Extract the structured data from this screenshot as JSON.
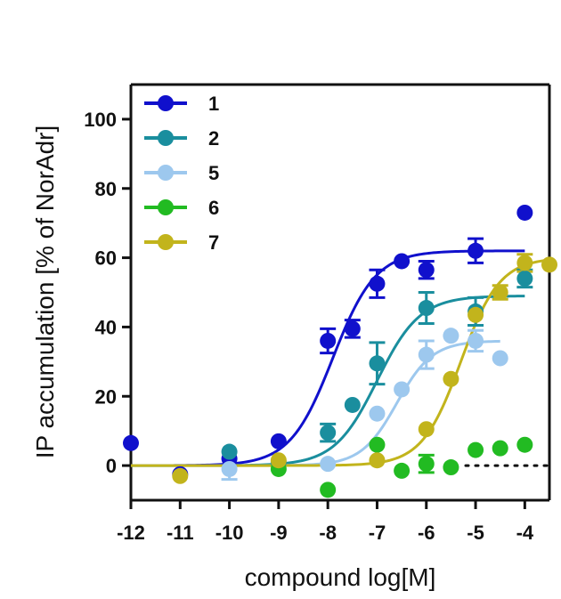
{
  "chart_data": {
    "type": "scatter",
    "title": "",
    "xlabel": "compound log[M]",
    "ylabel": "IP accumulation [% of NorAdr]",
    "xlim": [
      -12,
      -3.5
    ],
    "ylim": [
      -10,
      110
    ],
    "xticks": [
      -12,
      -11,
      -10,
      -9,
      -8,
      -7,
      -6,
      -5,
      -4
    ],
    "xtick_labels": [
      "-12",
      "-11",
      "-10",
      "-9",
      "-8",
      "-7",
      "-6",
      "-5",
      "-4"
    ],
    "yticks": [
      0,
      20,
      40,
      60,
      80,
      100
    ],
    "ytick_labels": [
      "0",
      "20",
      "40",
      "60",
      "80",
      "100"
    ],
    "legend_position": "top-left",
    "zero_line_dotted_from": -5.2,
    "series": [
      {
        "name": "1",
        "color": "#1010cc",
        "fit": {
          "bottom": 0,
          "top": 62,
          "logEC50": -7.9,
          "hill": 1,
          "x_from": -12,
          "x_to": -4
        },
        "points": [
          {
            "x": -12,
            "y": 6.5,
            "err": 0
          },
          {
            "x": -11,
            "y": -2.5,
            "err": 0
          },
          {
            "x": -10,
            "y": 2,
            "err": 0
          },
          {
            "x": -9,
            "y": 7,
            "err": 0
          },
          {
            "x": -8,
            "y": 36,
            "err": 3.5
          },
          {
            "x": -7.5,
            "y": 39.5,
            "err": 2.5
          },
          {
            "x": -7,
            "y": 52.5,
            "err": 4
          },
          {
            "x": -6.5,
            "y": 59,
            "err": 0
          },
          {
            "x": -6,
            "y": 56.5,
            "err": 2.5
          },
          {
            "x": -5,
            "y": 62,
            "err": 3.5
          },
          {
            "x": -4,
            "y": 73,
            "err": 0
          }
        ]
      },
      {
        "name": "2",
        "color": "#1a8e9e",
        "fit": {
          "bottom": 0,
          "top": 49,
          "logEC50": -7.0,
          "hill": 1,
          "x_from": -12,
          "x_to": -4
        },
        "points": [
          {
            "x": -10,
            "y": 4,
            "err": 0
          },
          {
            "x": -9,
            "y": 1,
            "err": 0
          },
          {
            "x": -8,
            "y": 9.5,
            "err": 2.5
          },
          {
            "x": -7.5,
            "y": 17.5,
            "err": 0
          },
          {
            "x": -7,
            "y": 29.5,
            "err": 6
          },
          {
            "x": -6,
            "y": 45.5,
            "err": 4.5
          },
          {
            "x": -5,
            "y": 44.5,
            "err": 4
          },
          {
            "x": -4,
            "y": 54,
            "err": 2.5
          }
        ]
      },
      {
        "name": "5",
        "color": "#9dc8ee",
        "fit": {
          "bottom": 0,
          "top": 36,
          "logEC50": -6.6,
          "hill": 1.2,
          "x_from": -12,
          "x_to": -4.5
        },
        "points": [
          {
            "x": -10,
            "y": -1,
            "err": 3
          },
          {
            "x": -8,
            "y": 0.5,
            "err": 0
          },
          {
            "x": -7,
            "y": 15,
            "err": 0
          },
          {
            "x": -6.5,
            "y": 22,
            "err": 0
          },
          {
            "x": -6,
            "y": 32,
            "err": 4
          },
          {
            "x": -5.5,
            "y": 37.5,
            "err": 0
          },
          {
            "x": -5,
            "y": 36,
            "err": 3
          },
          {
            "x": -4.5,
            "y": 31,
            "err": 0
          }
        ]
      },
      {
        "name": "6",
        "color": "#22bb22",
        "fit": null,
        "points": [
          {
            "x": -9,
            "y": -1,
            "err": 0
          },
          {
            "x": -8,
            "y": -7,
            "err": 0
          },
          {
            "x": -7,
            "y": 6,
            "err": 0
          },
          {
            "x": -6.5,
            "y": -1.5,
            "err": 0
          },
          {
            "x": -6,
            "y": 0.5,
            "err": 2.5
          },
          {
            "x": -5.5,
            "y": -0.5,
            "err": 0
          },
          {
            "x": -5,
            "y": 4.5,
            "err": 0
          },
          {
            "x": -4.5,
            "y": 5,
            "err": 0
          },
          {
            "x": -4,
            "y": 6,
            "err": 0
          }
        ]
      },
      {
        "name": "7",
        "color": "#c2b41c",
        "fit": {
          "bottom": 0,
          "top": 60,
          "logEC50": -5.3,
          "hill": 1.1,
          "x_from": -12,
          "x_to": -3.5
        },
        "points": [
          {
            "x": -11,
            "y": -3,
            "err": 0
          },
          {
            "x": -9,
            "y": 1.5,
            "err": 0
          },
          {
            "x": -7,
            "y": 1.5,
            "err": 0
          },
          {
            "x": -6,
            "y": 10.5,
            "err": 0
          },
          {
            "x": -5.5,
            "y": 25,
            "err": 0
          },
          {
            "x": -5,
            "y": 43.5,
            "err": 0
          },
          {
            "x": -4.5,
            "y": 50,
            "err": 2
          },
          {
            "x": -4,
            "y": 58.5,
            "err": 2.5
          },
          {
            "x": -3.5,
            "y": 58,
            "err": 0
          }
        ]
      }
    ]
  }
}
